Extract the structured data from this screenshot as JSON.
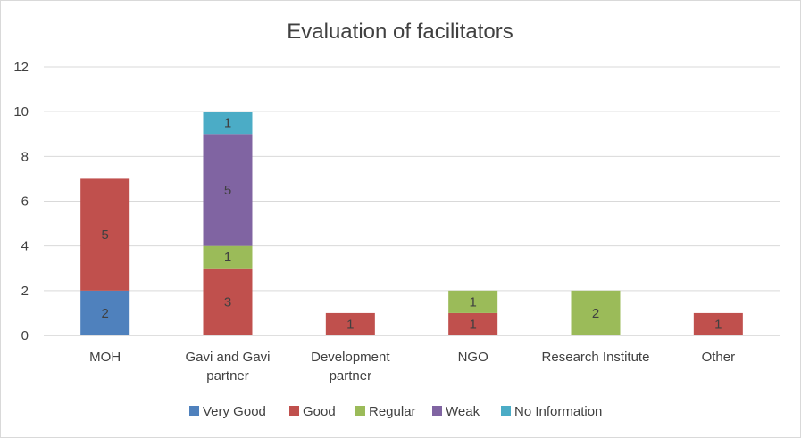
{
  "chart_data": {
    "type": "bar",
    "stacked": true,
    "title": "Evaluation of facilitators",
    "categories": [
      [
        "MOH"
      ],
      [
        "Gavi and Gavi",
        "partner"
      ],
      [
        "Development",
        "partner"
      ],
      [
        "NGO"
      ],
      [
        "Research Institute"
      ],
      [
        "Other"
      ]
    ],
    "series": [
      {
        "name": "Very Good",
        "color": "#4f81bd",
        "values": [
          2,
          0,
          0,
          0,
          0,
          0
        ]
      },
      {
        "name": "Good",
        "color": "#c0504d",
        "values": [
          5,
          3,
          1,
          1,
          0,
          1
        ]
      },
      {
        "name": "Regular",
        "color": "#9bbb59",
        "values": [
          0,
          1,
          0,
          1,
          2,
          0
        ]
      },
      {
        "name": "Weak",
        "color": "#8064a2",
        "values": [
          0,
          5,
          0,
          0,
          0,
          0
        ]
      },
      {
        "name": "No Information",
        "color": "#4bacc6",
        "values": [
          0,
          1,
          0,
          0,
          0,
          0
        ]
      }
    ],
    "ylim": [
      0,
      12
    ],
    "yticks": [
      0,
      2,
      4,
      6,
      8,
      10,
      12
    ],
    "grid": true,
    "legend_position": "bottom",
    "data_labels": true
  }
}
